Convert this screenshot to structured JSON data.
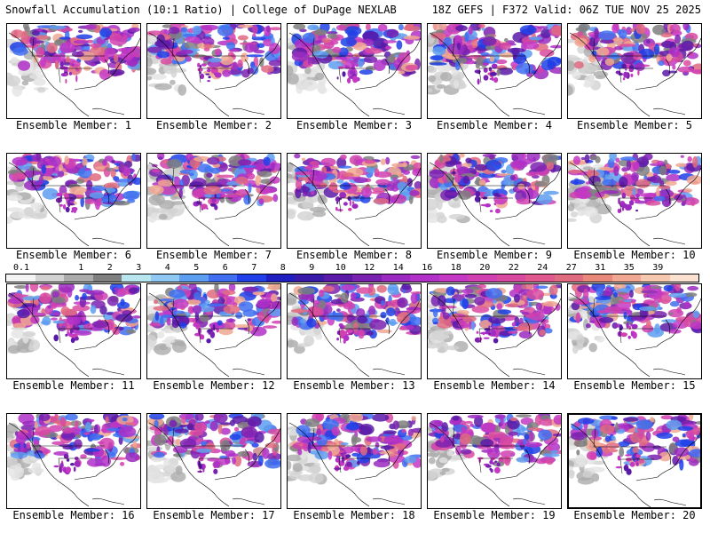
{
  "header": {
    "left": "Snowfall Accumulation (10:1 Ratio) | College of DuPage NEXLAB",
    "right": "18Z GEFS | F372 Valid: 06Z TUE NOV 25 2025"
  },
  "panels": [
    {
      "caption": "Ensemble Member: 1"
    },
    {
      "caption": "Ensemble Member: 2"
    },
    {
      "caption": "Ensemble Member: 3"
    },
    {
      "caption": "Ensemble Member: 4"
    },
    {
      "caption": "Ensemble Member: 5"
    },
    {
      "caption": "Ensemble Member: 6"
    },
    {
      "caption": "Ensemble Member: 7"
    },
    {
      "caption": "Ensemble Member: 8"
    },
    {
      "caption": "Ensemble Member: 9"
    },
    {
      "caption": "Ensemble Member: 10"
    },
    {
      "caption": "Ensemble Member: 11"
    },
    {
      "caption": "Ensemble Member: 12"
    },
    {
      "caption": "Ensemble Member: 13"
    },
    {
      "caption": "Ensemble Member: 14"
    },
    {
      "caption": "Ensemble Member: 15"
    },
    {
      "caption": "Ensemble Member: 16"
    },
    {
      "caption": "Ensemble Member: 17"
    },
    {
      "caption": "Ensemble Member: 18"
    },
    {
      "caption": "Ensemble Member: 19"
    },
    {
      "caption": "Ensemble Member: 20"
    }
  ],
  "legend": {
    "labels": [
      "0.1",
      "1",
      "2",
      "3",
      "4",
      "5",
      "6",
      "7",
      "8",
      "9",
      "10",
      "12",
      "14",
      "16",
      "18",
      "20",
      "22",
      "24",
      "27",
      "31",
      "35",
      "39"
    ],
    "colors": [
      "#f4f4f4",
      "#d2d2d2",
      "#ababab",
      "#7f7f7f",
      "#b8e6ee",
      "#8fc8f2",
      "#5e9ef0",
      "#3f6ff0",
      "#1f3fe8",
      "#2020c0",
      "#3a1aa8",
      "#5a1aa8",
      "#7a22b0",
      "#9a2ac0",
      "#b030c8",
      "#c438c4",
      "#d040b0",
      "#d84aa0",
      "#e05890",
      "#e06a80",
      "#e88878",
      "#f0a890",
      "#f6c8b0",
      "#fbe2d0"
    ]
  }
}
